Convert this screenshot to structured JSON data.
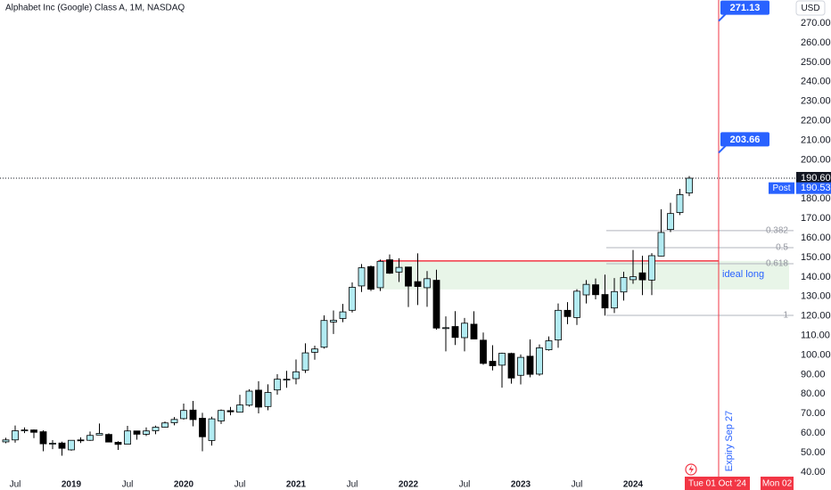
{
  "chart_data": {
    "type": "candlestick",
    "title": "Alphabet Inc (Google) Class A, 1M, NASDAQ",
    "currency": "USD",
    "categories": [
      null,
      "Jul",
      null,
      null,
      null,
      null,
      null,
      "2019",
      null,
      null,
      null,
      null,
      null,
      "Jul",
      null,
      null,
      null,
      null,
      null,
      "2020",
      null,
      null,
      null,
      null,
      null,
      "Jul",
      null,
      null,
      null,
      null,
      null,
      "2021",
      null,
      null,
      null,
      null,
      null,
      "Jul",
      null,
      null,
      null,
      null,
      null,
      "2022",
      null,
      null,
      null,
      null,
      null,
      "Jul",
      null,
      null,
      null,
      null,
      null,
      "2023",
      null,
      null,
      null,
      null,
      null,
      "Jul",
      null,
      null,
      null,
      null,
      null,
      "2024",
      null,
      null,
      null,
      null,
      null,
      null
    ],
    "open": [
      55.5,
      56.5,
      61.5,
      61.6,
      60.7,
      54.6,
      54.9,
      51.4,
      56.5,
      56.3,
      59.0,
      59.3,
      55.3,
      54.3,
      61.1,
      59.4,
      61.2,
      63.0,
      65.3,
      67.4,
      71.8,
      67.6,
      56.2,
      66.2,
      71.5,
      70.7,
      74.3,
      82.0,
      73.6,
      82.1,
      87.6,
      87.9,
      92.2,
      101.4,
      104.0,
      116.9,
      118.7,
      122.9,
      135.4,
      145.3,
      134.5,
      148.8,
      142.5,
      145.1,
      137.6,
      134.5,
      138.3,
      113.9,
      114.6,
      108.9,
      115.8,
      107.6,
      96.8,
      94.8,
      100.8,
      89.6,
      99.4,
      90.2,
      102.7,
      107.7,
      122.9,
      119.2,
      130.8,
      136.0,
      131.0,
      124.1,
      132.3,
      138.6,
      142.1,
      138.4,
      150.7,
      164.3,
      173.0,
      183.0
    ],
    "high": [
      57.6,
      63.9,
      62.9,
      61.9,
      61.4,
      56.4,
      55.6,
      56.4,
      57.8,
      60.8,
      64.9,
      59.9,
      55.8,
      63.7,
      61.2,
      62.9,
      63.8,
      65.9,
      68.2,
      75.1,
      76.5,
      70.4,
      68.4,
      72.1,
      73.4,
      79.6,
      82.4,
      86.6,
      85.0,
      90.2,
      91.9,
      97.7,
      106.0,
      104.8,
      120.3,
      122.8,
      126.2,
      137.2,
      146.6,
      145.8,
      148.9,
      151.5,
      149.6,
      145.1,
      152.1,
      143.0,
      143.7,
      119.8,
      122.5,
      119.0,
      122.4,
      111.5,
      105.0,
      101.2,
      101.2,
      100.3,
      108.0,
      105.4,
      109.5,
      126.4,
      127.1,
      133.7,
      138.4,
      139.2,
      141.2,
      139.4,
      142.7,
      153.8,
      150.9,
      152.2,
      174.7,
      178.0,
      185.1,
      191.7
    ],
    "low": [
      54.8,
      55.1,
      60.0,
      57.4,
      50.7,
      51.8,
      48.4,
      51.0,
      54.9,
      56.0,
      58.9,
      55.6,
      51.4,
      54.1,
      56.6,
      58.5,
      59.4,
      62.8,
      64.0,
      66.9,
      63.5,
      50.7,
      53.6,
      64.7,
      69.1,
      70.6,
      73.6,
      70.1,
      71.7,
      79.7,
      83.2,
      85.0,
      90.8,
      97.6,
      103.3,
      110.8,
      116.8,
      121.8,
      132.3,
      132.8,
      132.8,
      141.6,
      137.4,
      124.6,
      125.6,
      124.7,
      113.0,
      101.9,
      105.1,
      101.9,
      108.9,
      95.0,
      92.1,
      83.3,
      85.3,
      84.9,
      88.6,
      89.4,
      102.2,
      103.7,
      115.8,
      115.4,
      126.4,
      128.5,
      120.2,
      121.5,
      127.9,
      136.5,
      130.7,
      130.7,
      150.6,
      163.0,
      171.7,
      181.4
    ],
    "close": [
      56.5,
      61.2,
      61.6,
      60.4,
      54.5,
      54.8,
      52.2,
      56.3,
      56.2,
      58.8,
      59.8,
      55.4,
      54.2,
      61.1,
      59.4,
      61.1,
      63.0,
      65.2,
      67.0,
      71.6,
      66.9,
      58.1,
      67.3,
      71.6,
      70.9,
      74.4,
      81.5,
      73.3,
      80.8,
      87.6,
      87.6,
      91.4,
      101.1,
      103.1,
      117.7,
      117.8,
      122.1,
      134.7,
      144.7,
      133.7,
      148.0,
      141.9,
      144.9,
      135.3,
      135.1,
      139.1,
      113.8,
      114.0,
      109.0,
      116.3,
      108.2,
      95.7,
      94.5,
      100.9,
      88.2,
      98.8,
      90.1,
      103.7,
      107.3,
      122.9,
      119.7,
      132.7,
      136.2,
      130.9,
      124.1,
      132.5,
      139.7,
      140.1,
      138.5,
      150.9,
      162.8,
      172.5,
      182.2,
      190.6
    ],
    "up_color": "#b2ebf2",
    "down_color": "#000000",
    "ylim": [
      35.4,
      281.9
    ],
    "yticks": [
      {
        "value": 40,
        "label": "40.00"
      },
      {
        "value": 50,
        "label": "50.00"
      },
      {
        "value": 60,
        "label": "60.00"
      },
      {
        "value": 70,
        "label": "70.00"
      },
      {
        "value": 80,
        "label": "80.00"
      },
      {
        "value": 90,
        "label": "90.00"
      },
      {
        "value": 100,
        "label": "100.00"
      },
      {
        "value": 110,
        "label": "110.00"
      },
      {
        "value": 120,
        "label": "120.00"
      },
      {
        "value": 130,
        "label": "130.00"
      },
      {
        "value": 140,
        "label": "140.00"
      },
      {
        "value": 150,
        "label": "150.00"
      },
      {
        "value": 160,
        "label": "160.00"
      },
      {
        "value": 170,
        "label": "170.00"
      },
      {
        "value": 180,
        "label": "180.00"
      },
      {
        "value": 200,
        "label": "200.00"
      },
      {
        "value": 210,
        "label": "210.00"
      },
      {
        "value": 220,
        "label": "220.00"
      },
      {
        "value": 230,
        "label": "230.00"
      },
      {
        "value": 240,
        "label": "240.00"
      },
      {
        "value": 250,
        "label": "250.00"
      },
      {
        "value": 260,
        "label": "260.00"
      },
      {
        "value": 270,
        "label": "270.00"
      }
    ],
    "last_price": {
      "value": 190.6,
      "label": "190.60"
    },
    "post_market": {
      "name": "Post",
      "value": 190.53,
      "label": "190.53"
    },
    "targets": [
      {
        "value": 271.13,
        "label": "271.13"
      },
      {
        "value": 203.66,
        "label": "203.66"
      }
    ],
    "fib_levels": [
      {
        "label": "0.382",
        "value": 163.7
      },
      {
        "label": "0.5",
        "value": 155.0
      },
      {
        "label": "0.618",
        "value": 146.8
      },
      {
        "label": "1",
        "value": 120.3
      }
    ],
    "resistance": 148.2,
    "zone": {
      "label": "ideal long",
      "low": 133.6,
      "high": 148.2
    },
    "expiry_label": "Expiry Sep 27",
    "date_labels": [
      "Tue 01 Oct '24",
      "Mon 02"
    ]
  }
}
